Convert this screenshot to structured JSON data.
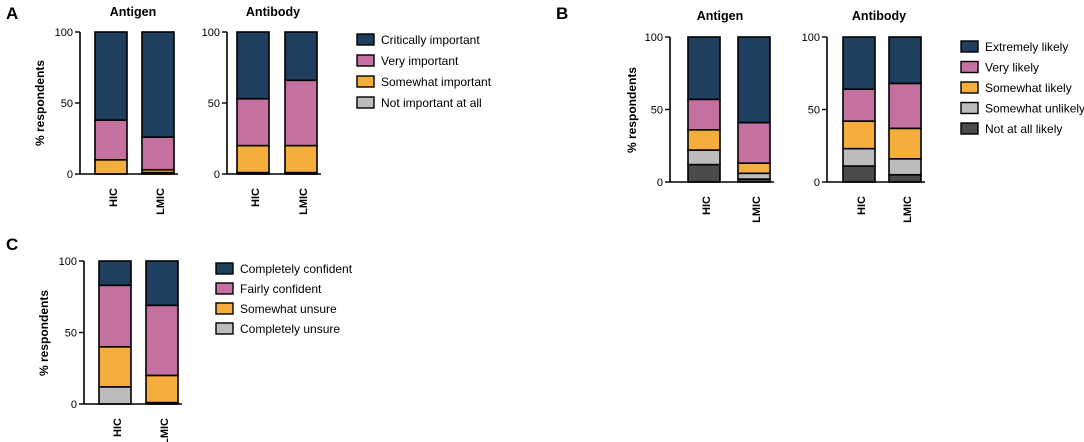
{
  "colors": {
    "navy": "#1e3f5e",
    "pink": "#c4719f",
    "orange": "#f5ae3d",
    "lightgray": "#bcbcbc",
    "darkgray": "#4b4b4b"
  },
  "panels": {
    "A": {
      "letter": "A"
    },
    "B": {
      "letter": "B"
    },
    "C": {
      "letter": "C"
    }
  },
  "chart_data": [
    {
      "id": "A-antigen",
      "panel": "A",
      "type": "bar",
      "stacked": true,
      "title": "Antigen",
      "ylabel": "% respondents",
      "ylim": [
        0,
        100
      ],
      "yticks": [
        "0",
        "50",
        "100"
      ],
      "categories": [
        "HIC",
        "LMIC"
      ],
      "series": [
        {
          "name": "Not important at all",
          "color": "#bcbcbc",
          "values": [
            0,
            1
          ]
        },
        {
          "name": "Somewhat important",
          "color": "#f5ae3d",
          "values": [
            10,
            2
          ]
        },
        {
          "name": "Very important",
          "color": "#c4719f",
          "values": [
            28,
            23
          ]
        },
        {
          "name": "Critically important",
          "color": "#1e3f5e",
          "values": [
            62,
            74
          ]
        }
      ]
    },
    {
      "id": "A-antibody",
      "panel": "A",
      "type": "bar",
      "stacked": true,
      "title": "Antibody",
      "ylim": [
        0,
        100
      ],
      "yticks": [
        "0",
        "50",
        "100"
      ],
      "categories": [
        "HIC",
        "LMIC"
      ],
      "series": [
        {
          "name": "Not important at all",
          "color": "#bcbcbc",
          "values": [
            1,
            1
          ]
        },
        {
          "name": "Somewhat important",
          "color": "#f5ae3d",
          "values": [
            19,
            19
          ]
        },
        {
          "name": "Very important",
          "color": "#c4719f",
          "values": [
            33,
            46
          ]
        },
        {
          "name": "Critically important",
          "color": "#1e3f5e",
          "values": [
            47,
            34
          ]
        }
      ]
    },
    {
      "id": "B-antigen",
      "panel": "B",
      "type": "bar",
      "stacked": true,
      "title": "Antigen",
      "ylabel": "% respondents",
      "ylim": [
        0,
        100
      ],
      "yticks": [
        "0",
        "50",
        "100"
      ],
      "categories": [
        "HIC",
        "LMIC"
      ],
      "series": [
        {
          "name": "Not at all likely",
          "color": "#4b4b4b",
          "values": [
            12,
            2
          ]
        },
        {
          "name": "Somewhat unlikely",
          "color": "#bcbcbc",
          "values": [
            10,
            4
          ]
        },
        {
          "name": "Somewhat likely",
          "color": "#f5ae3d",
          "values": [
            14,
            7
          ]
        },
        {
          "name": "Very likely",
          "color": "#c4719f",
          "values": [
            21,
            28
          ]
        },
        {
          "name": "Extremely likely",
          "color": "#1e3f5e",
          "values": [
            43,
            59
          ]
        }
      ]
    },
    {
      "id": "B-antibody",
      "panel": "B",
      "type": "bar",
      "stacked": true,
      "title": "Antibody",
      "ylim": [
        0,
        100
      ],
      "yticks": [
        "0",
        "50",
        "100"
      ],
      "categories": [
        "HIC",
        "LMIC"
      ],
      "series": [
        {
          "name": "Not at all likely",
          "color": "#4b4b4b",
          "values": [
            11,
            5
          ]
        },
        {
          "name": "Somewhat unlikely",
          "color": "#bcbcbc",
          "values": [
            12,
            11
          ]
        },
        {
          "name": "Somewhat likely",
          "color": "#f5ae3d",
          "values": [
            19,
            21
          ]
        },
        {
          "name": "Very likely",
          "color": "#c4719f",
          "values": [
            22,
            31
          ]
        },
        {
          "name": "Extremely likely",
          "color": "#1e3f5e",
          "values": [
            36,
            32
          ]
        }
      ]
    },
    {
      "id": "C-confidence",
      "panel": "C",
      "type": "bar",
      "stacked": true,
      "title": "",
      "ylabel": "% respondents",
      "ylim": [
        0,
        100
      ],
      "yticks": [
        "0",
        "50",
        "100"
      ],
      "categories": [
        "HIC",
        "LMIC"
      ],
      "series": [
        {
          "name": "Completely unsure",
          "color": "#bcbcbc",
          "values": [
            12,
            1
          ]
        },
        {
          "name": "Somewhat unsure",
          "color": "#f5ae3d",
          "values": [
            28,
            19
          ]
        },
        {
          "name": "Fairly confident",
          "color": "#c4719f",
          "values": [
            43,
            49
          ]
        },
        {
          "name": "Completely confident",
          "color": "#1e3f5e",
          "values": [
            17,
            31
          ]
        }
      ]
    }
  ],
  "legends": {
    "A": [
      "Critically important",
      "Very important",
      "Somewhat important",
      "Not important at all"
    ],
    "B": [
      "Extremely likely",
      "Very likely",
      "Somewhat likely",
      "Somewhat unlikely",
      "Not at all likely"
    ],
    "C": [
      "Completely confident",
      "Fairly confident",
      "Somewhat unsure",
      "Completely unsure"
    ]
  },
  "legend_colors": {
    "A": [
      "#1e3f5e",
      "#c4719f",
      "#f5ae3d",
      "#bcbcbc"
    ],
    "B": [
      "#1e3f5e",
      "#c4719f",
      "#f5ae3d",
      "#bcbcbc",
      "#4b4b4b"
    ],
    "C": [
      "#1e3f5e",
      "#c4719f",
      "#f5ae3d",
      "#bcbcbc"
    ]
  }
}
